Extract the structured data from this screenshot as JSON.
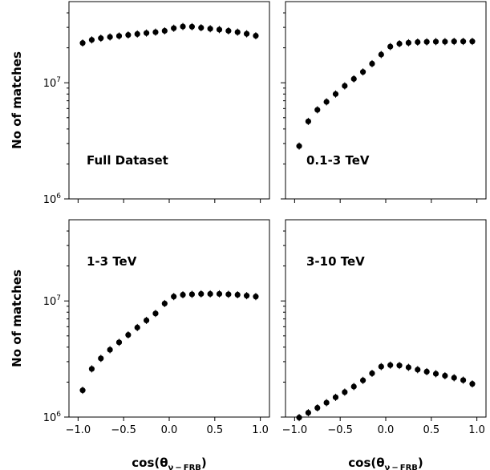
{
  "chart_data": [
    {
      "type": "scatter",
      "label": "Full Dataset",
      "ylabel": "No of matches",
      "xlabel": "",
      "x": [
        -0.95,
        -0.85,
        -0.75,
        -0.65,
        -0.55,
        -0.45,
        -0.35,
        -0.25,
        -0.15,
        -0.05,
        0.05,
        0.15,
        0.25,
        0.35,
        0.45,
        0.55,
        0.65,
        0.75,
        0.85,
        0.95
      ],
      "y": [
        22000000,
        23400000,
        24200000,
        24800000,
        25300000,
        25800000,
        26300000,
        26800000,
        27300000,
        28000000,
        29500000,
        30500000,
        30400000,
        29800000,
        29200000,
        28700000,
        28000000,
        27300000,
        26400000,
        25400000
      ]
    },
    {
      "type": "scatter",
      "label": "0.1-3 TeV",
      "ylabel": "",
      "xlabel": "",
      "x": [
        -0.95,
        -0.85,
        -0.75,
        -0.65,
        -0.55,
        -0.45,
        -0.35,
        -0.25,
        -0.15,
        -0.05,
        0.05,
        0.15,
        0.25,
        0.35,
        0.45,
        0.55,
        0.65,
        0.75,
        0.85,
        0.95
      ],
      "y": [
        2850000,
        4650000,
        5850000,
        6850000,
        8000000,
        9400000,
        10800000,
        12400000,
        14600000,
        17500000,
        20500000,
        21700000,
        22100000,
        22400000,
        22500000,
        22600000,
        22600000,
        22700000,
        22700000,
        22700000
      ]
    },
    {
      "type": "scatter",
      "label": "1-3 TeV",
      "ylabel": "No of matches",
      "xlabel": "cos(θ",
      "x": [
        -0.95,
        -0.85,
        -0.75,
        -0.65,
        -0.55,
        -0.45,
        -0.35,
        -0.25,
        -0.15,
        -0.05,
        0.05,
        0.15,
        0.25,
        0.35,
        0.45,
        0.55,
        0.65,
        0.75,
        0.85,
        0.95
      ],
      "y": [
        1700000,
        2600000,
        3200000,
        3800000,
        4400000,
        5100000,
        5900000,
        6800000,
        7800000,
        9500000,
        10900000,
        11300000,
        11400000,
        11500000,
        11500000,
        11500000,
        11400000,
        11300000,
        11100000,
        10900000
      ]
    },
    {
      "type": "scatter",
      "label": "3-10 TeV",
      "ylabel": "",
      "xlabel": "cos(θ",
      "x": [
        -0.95,
        -0.85,
        -0.75,
        -0.65,
        -0.55,
        -0.45,
        -0.35,
        -0.25,
        -0.15,
        -0.05,
        0.05,
        0.15,
        0.25,
        0.35,
        0.45,
        0.55,
        0.65,
        0.75,
        0.85,
        0.95
      ],
      "y": [
        990000,
        1090000,
        1200000,
        1330000,
        1480000,
        1640000,
        1830000,
        2070000,
        2380000,
        2720000,
        2800000,
        2780000,
        2680000,
        2560000,
        2460000,
        2360000,
        2270000,
        2180000,
        2080000,
        1930000
      ]
    }
  ],
  "axes": {
    "xlim": [
      -1.1,
      1.1
    ],
    "ylim": [
      1000000,
      50000000
    ],
    "yscale": "log",
    "x_ticks": [
      -1.0,
      -0.5,
      0.0,
      0.5,
      1.0
    ],
    "x_tick_labels": [
      "−1.0",
      "−0.5",
      "0.0",
      "0.5",
      "1.0"
    ],
    "y_major_ticks": [
      1000000,
      10000000
    ],
    "y_tick_labels": [
      {
        "base": "10",
        "exp": "6"
      },
      {
        "base": "10",
        "exp": "7"
      }
    ],
    "xlabel_subscript": "ν − FRB",
    "xlabel_close": ")"
  },
  "colors": {
    "marker": "#000000",
    "frame": "#000000",
    "background": "#ffffff"
  }
}
